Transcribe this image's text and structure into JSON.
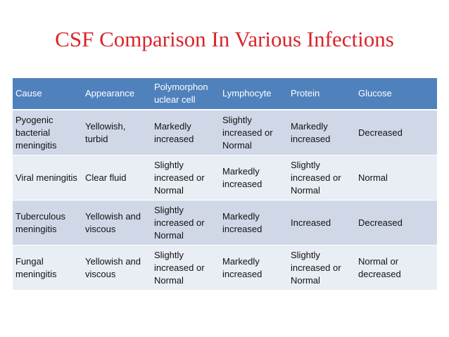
{
  "title": "CSF Comparison In Various Infections",
  "table": {
    "headers": [
      "Cause",
      "Appearance",
      "Polymorphonuclear cell",
      "Lymphocyte",
      "Protein",
      "Glucose"
    ],
    "rows": [
      [
        "Pyogenic bacterial meningitis",
        "Yellowish, turbid",
        "Markedly increased",
        "Slightly increased or Normal",
        "Markedly increased",
        "Decreased"
      ],
      [
        "Viral meningitis",
        "Clear fluid",
        "Slightly increased or Normal",
        "Markedly increased",
        "Slightly increased or Normal",
        "Normal"
      ],
      [
        "Tuberculous meningitis",
        "Yellowish and viscous",
        "Slightly increased or Normal",
        "Markedly increased",
        "Increased",
        "Decreased"
      ],
      [
        "Fungal meningitis",
        "Yellowish and viscous",
        "Slightly increased or Normal",
        "Markedly increased",
        "Slightly increased or Normal",
        "Normal or decreased"
      ]
    ]
  }
}
